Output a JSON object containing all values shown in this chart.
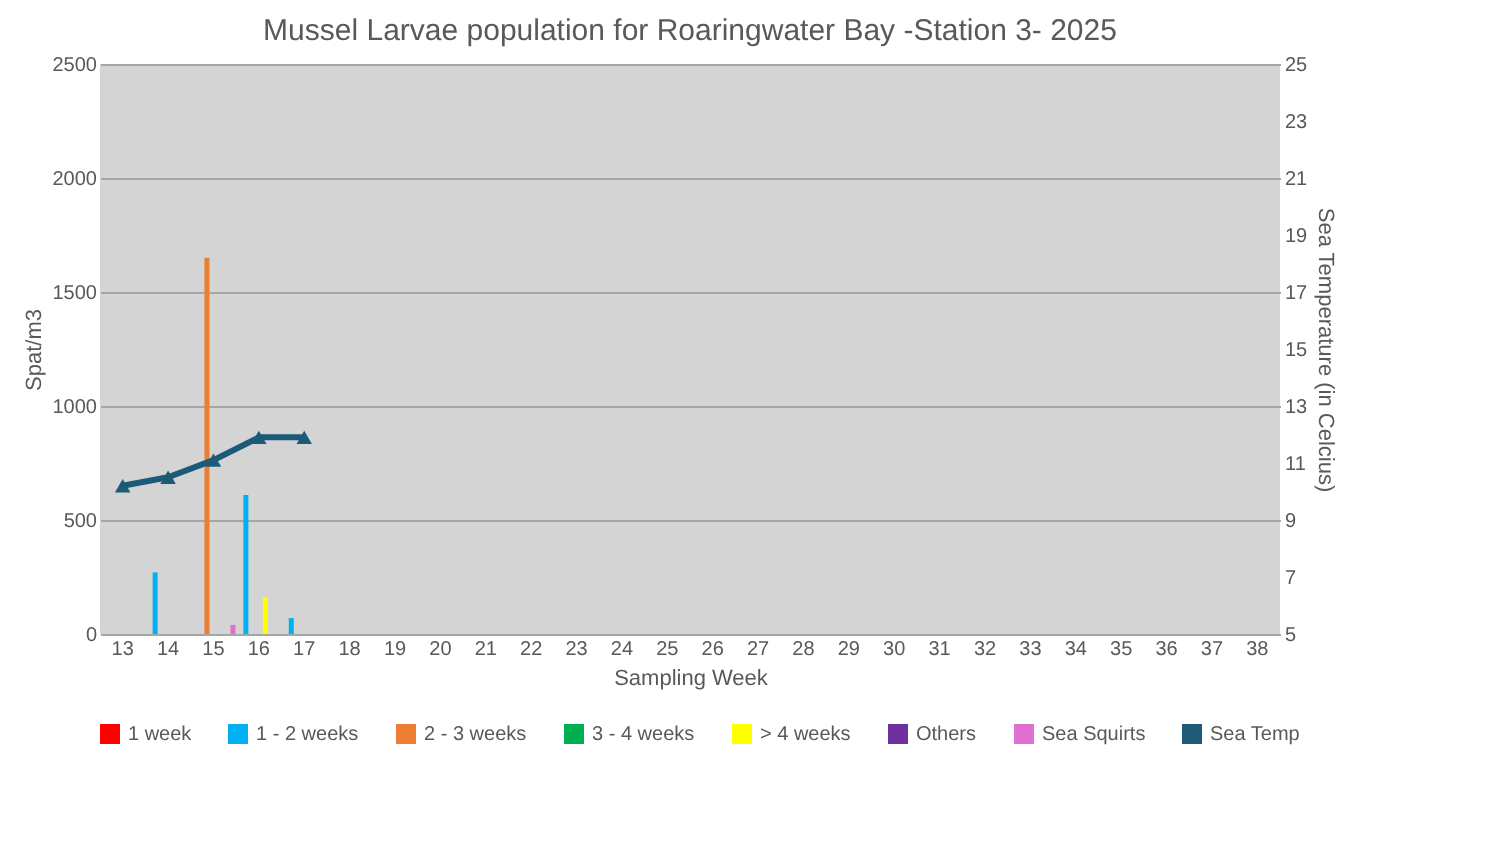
{
  "chart_data": {
    "type": "bar",
    "title": "Mussel Larvae population for Roaringwater Bay -Station 3- 2025",
    "xlabel": "Sampling Week",
    "ylabel": "Spat/m3",
    "y2label": "Sea Temperature (in Celcius)",
    "categories": [
      "13",
      "14",
      "15",
      "16",
      "17",
      "18",
      "19",
      "20",
      "21",
      "22",
      "23",
      "24",
      "25",
      "26",
      "27",
      "28",
      "29",
      "30",
      "31",
      "32",
      "33",
      "34",
      "35",
      "36",
      "37",
      "38"
    ],
    "series": [
      {
        "name": "1 week",
        "color": "#ff0000",
        "values": [
          null,
          null,
          null,
          null,
          null,
          null,
          null,
          null,
          null,
          null,
          null,
          null,
          null,
          null,
          null,
          null,
          null,
          null,
          null,
          null,
          null,
          null,
          null,
          null,
          null,
          null
        ]
      },
      {
        "name": "1 - 2 weeks",
        "color": "#00b0f0",
        "values": [
          null,
          270,
          null,
          610,
          70,
          null,
          null,
          null,
          null,
          null,
          null,
          null,
          null,
          null,
          null,
          null,
          null,
          null,
          null,
          null,
          null,
          null,
          null,
          null,
          null,
          null
        ]
      },
      {
        "name": "2 - 3 weeks",
        "color": "#ed7d31",
        "values": [
          null,
          null,
          1650,
          null,
          null,
          null,
          null,
          null,
          null,
          null,
          null,
          null,
          null,
          null,
          null,
          null,
          null,
          null,
          null,
          null,
          null,
          null,
          null,
          null,
          null,
          null
        ]
      },
      {
        "name": "3 - 4 weeks",
        "color": "#00b050",
        "values": [
          null,
          null,
          null,
          null,
          null,
          null,
          null,
          null,
          null,
          null,
          null,
          null,
          null,
          null,
          null,
          null,
          null,
          null,
          null,
          null,
          null,
          null,
          null,
          null,
          null,
          null
        ]
      },
      {
        "name": "> 4 weeks",
        "color": "#ffff00",
        "values": [
          null,
          null,
          null,
          160,
          null,
          null,
          null,
          null,
          null,
          null,
          null,
          null,
          null,
          null,
          null,
          null,
          null,
          null,
          null,
          null,
          null,
          null,
          null,
          null,
          null,
          null
        ]
      },
      {
        "name": "Others",
        "color": "#7030a0",
        "values": [
          null,
          null,
          null,
          null,
          null,
          null,
          null,
          null,
          null,
          null,
          null,
          null,
          null,
          null,
          null,
          null,
          null,
          null,
          null,
          null,
          null,
          null,
          null,
          null,
          null,
          null
        ]
      },
      {
        "name": "Sea Squirts",
        "color": "#e070d0",
        "values": [
          null,
          null,
          40,
          null,
          null,
          null,
          null,
          null,
          null,
          null,
          null,
          null,
          null,
          null,
          null,
          null,
          null,
          null,
          null,
          null,
          null,
          null,
          null,
          null,
          null,
          null
        ]
      },
      {
        "name": "Sea Temp",
        "type": "line",
        "axis": "y2",
        "color": "#1d5a78",
        "marker": "triangle",
        "values": [
          10.2,
          10.5,
          11.1,
          11.9,
          11.9,
          null,
          null,
          null,
          null,
          null,
          null,
          null,
          null,
          null,
          null,
          null,
          null,
          null,
          null,
          null,
          null,
          null,
          null,
          null,
          null,
          null
        ]
      }
    ],
    "ylim": [
      0,
      2500
    ],
    "yticks": [
      0,
      500,
      1000,
      1500,
      2000,
      2500
    ],
    "y2lim": [
      5,
      25
    ],
    "y2ticks": [
      5,
      7,
      9,
      11,
      13,
      15,
      17,
      19,
      21,
      23,
      25
    ],
    "grid": "y",
    "legend": "bottom"
  }
}
